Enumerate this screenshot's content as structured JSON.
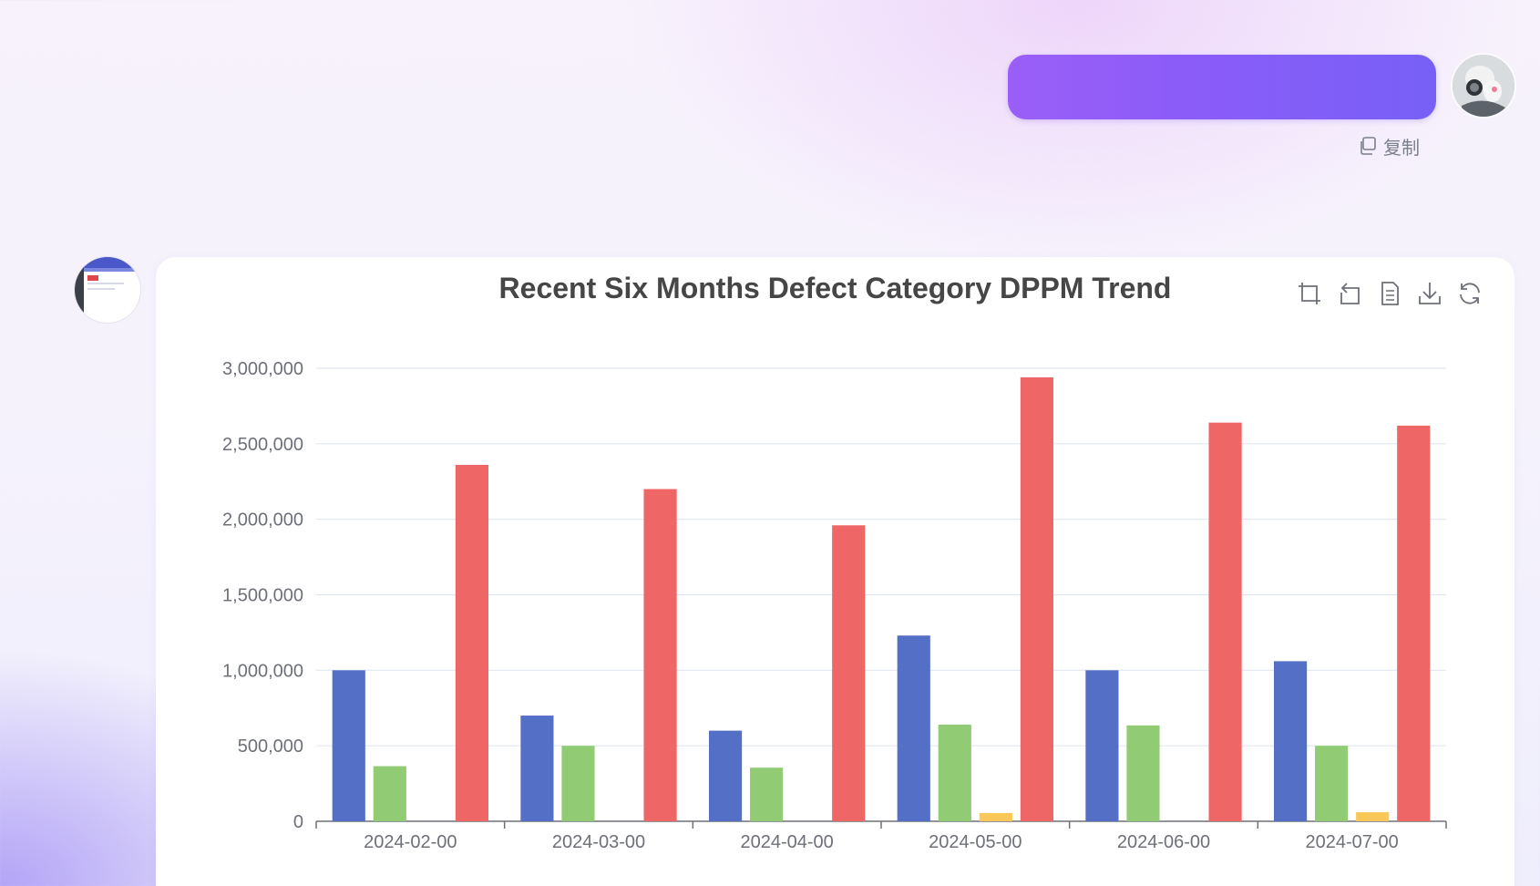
{
  "conversation": {
    "copy_label": "复制"
  },
  "icons": {
    "copy": "copy-icon",
    "toolbox": [
      "zoom-icon",
      "zoom-reset-icon",
      "data-view-icon",
      "save-image-icon",
      "restore-icon"
    ]
  },
  "colors": {
    "user_bubble_start": "#9b5ef8",
    "user_bubble_end": "#7760f6",
    "series": [
      "#5470c6",
      "#91cc75",
      "#fac858",
      "#ee6666"
    ]
  },
  "chart_data": {
    "type": "bar",
    "title": "Recent Six Months Defect Category DPPM Trend",
    "categories": [
      "2024-02-00",
      "2024-03-00",
      "2024-04-00",
      "2024-05-00",
      "2024-06-00",
      "2024-07-00"
    ],
    "series": [
      {
        "values": [
          1000000,
          700000,
          600000,
          1230000,
          1000000,
          1060000
        ]
      },
      {
        "values": [
          365000,
          500000,
          355000,
          640000,
          635000,
          500000
        ]
      },
      {
        "values": [
          0,
          0,
          0,
          55000,
          0,
          60000
        ]
      },
      {
        "values": [
          2360000,
          2200000,
          1960000,
          2940000,
          2640000,
          2620000
        ]
      }
    ],
    "ylim": [
      0,
      3000000
    ],
    "yticks": [
      0,
      500000,
      1000000,
      1500000,
      2000000,
      2500000,
      3000000
    ],
    "ytick_labels": [
      "0",
      "500,000",
      "1,000,000",
      "1,500,000",
      "2,000,000",
      "2,500,000",
      "3,000,000"
    ],
    "grid": true
  }
}
